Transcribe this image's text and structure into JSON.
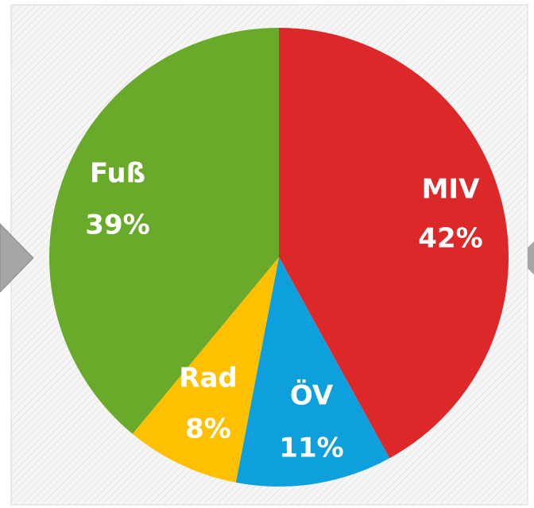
{
  "chart_data": {
    "type": "pie",
    "categories": [
      "MIV",
      "ÖV",
      "Rad",
      "Fuß"
    ],
    "values": [
      42,
      11,
      8,
      39
    ],
    "value_labels": [
      "42%",
      "11%",
      "8%",
      "39%"
    ],
    "colors": [
      "#dc2828",
      "#0ea0dc",
      "#ffc000",
      "#6aaa2a"
    ]
  }
}
